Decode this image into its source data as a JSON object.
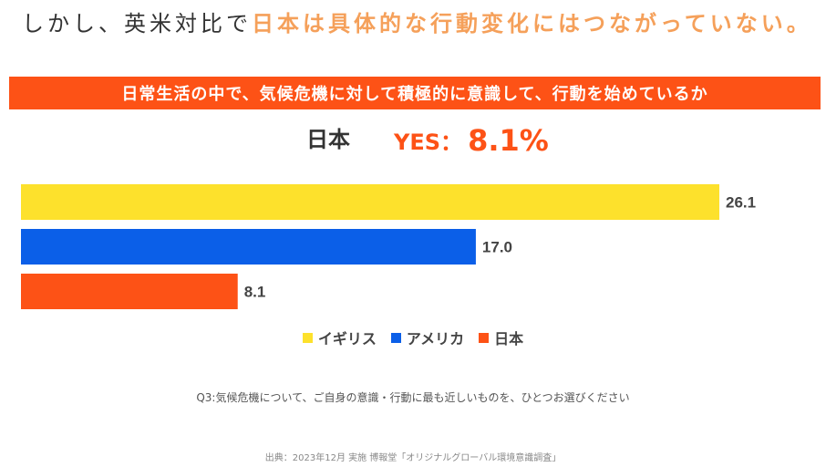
{
  "headline": {
    "lead": "しかし、英米対比で",
    "highlight": "日本は具体的な行動変化にはつながっていない。"
  },
  "banner": {
    "text": "日常生活の中で、気候危機に対して積極的に意識して、行動を始めているか"
  },
  "summary": {
    "country": "日本",
    "yes_label": "YES：",
    "yes_value": "8.1%"
  },
  "chart_data": {
    "type": "bar",
    "orientation": "horizontal",
    "categories": [
      "イギリス",
      "アメリカ",
      "日本"
    ],
    "values": [
      26.1,
      17.0,
      8.1
    ],
    "value_labels": [
      "26.1",
      "17.0",
      "8.1"
    ],
    "xlim": [
      0,
      30
    ],
    "colors": [
      "#fde12c",
      "#0b5fe8",
      "#fd5216"
    ],
    "legend_position": "bottom",
    "title": "日常生活の中で、気候危機に対して積極的に意識して、行動を始めているか"
  },
  "legend": {
    "items": [
      {
        "label": "イギリス",
        "color": "#fde12c"
      },
      {
        "label": "アメリカ",
        "color": "#0b5fe8"
      },
      {
        "label": "日本",
        "color": "#fd5216"
      }
    ]
  },
  "question": "Q3:気候危機について、ご自身の意識・行動に最も近しいものを、ひとつお選びください",
  "source": "出典：2023年12月 実施 博報堂「オリジナルグローバル環境意識調査」",
  "colors": {
    "accent": "#fd5216",
    "headline_highlight": "#f5a05a",
    "text": "#333333"
  }
}
